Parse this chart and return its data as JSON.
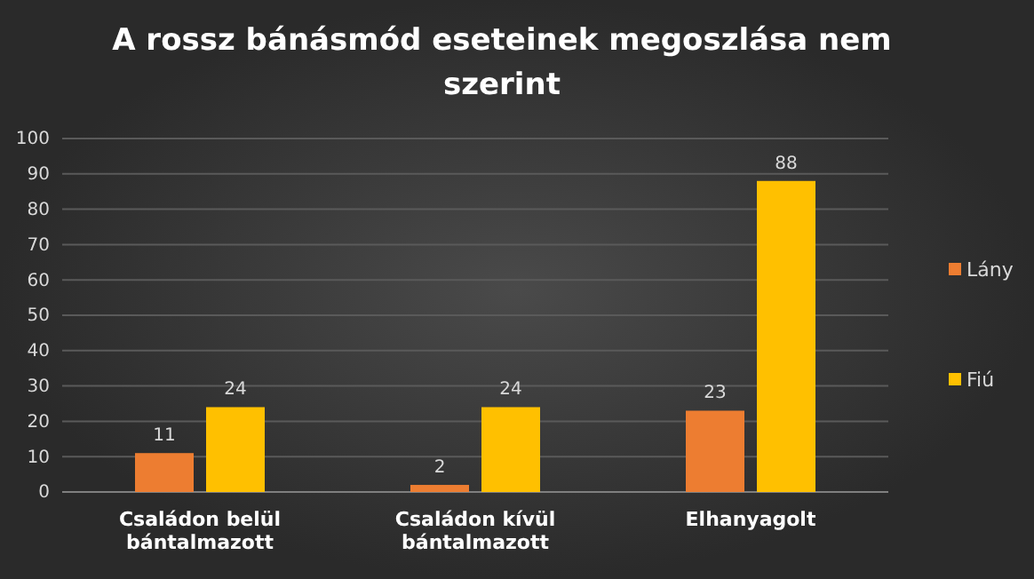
{
  "chart_data": {
    "type": "bar",
    "title": "A rossz bánásmód eseteinek megoszlása nem szerint",
    "categories": [
      "Családon belül bántalmazott",
      "Családon kívül bántalmazott",
      "Elhanyagolt"
    ],
    "series": [
      {
        "name": "Lány",
        "color": "#ed7d31",
        "values": [
          11,
          2,
          23
        ]
      },
      {
        "name": "Fiú",
        "color": "#ffc000",
        "values": [
          24,
          24,
          88
        ]
      }
    ],
    "ylim": [
      0,
      100
    ],
    "yticks": [
      0,
      10,
      20,
      30,
      40,
      50,
      60,
      70,
      80,
      90,
      100
    ],
    "grid": "y",
    "legend": "right",
    "data_labels": true
  }
}
